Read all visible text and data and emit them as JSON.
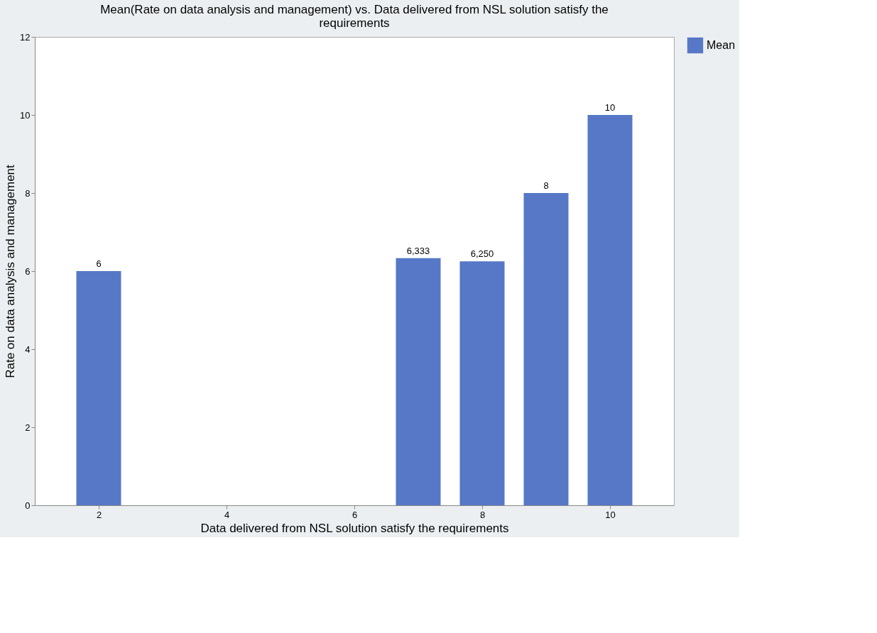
{
  "chart_data": {
    "type": "bar",
    "title": "Mean(Rate on data analysis and management) vs. Data delivered from NSL solution satisfy the requirements",
    "xlabel": "Data delivered from NSL solution satisfy the requirements",
    "ylabel": "Rate on data analysis and management",
    "x": [
      2,
      7,
      8,
      9,
      10
    ],
    "series": [
      {
        "name": "Mean",
        "color": "#5778c6",
        "values": [
          6,
          6.333,
          6.25,
          8,
          10
        ]
      }
    ],
    "value_labels": [
      "6",
      "6,333",
      "6,250",
      "8",
      "10"
    ],
    "xlim": [
      1,
      11
    ],
    "xticks": [
      2,
      4,
      6,
      8,
      10
    ],
    "ylim": [
      0,
      12
    ],
    "yticks": [
      0,
      2,
      4,
      6,
      8,
      10,
      12
    ],
    "grid": false,
    "legend": "top right"
  }
}
